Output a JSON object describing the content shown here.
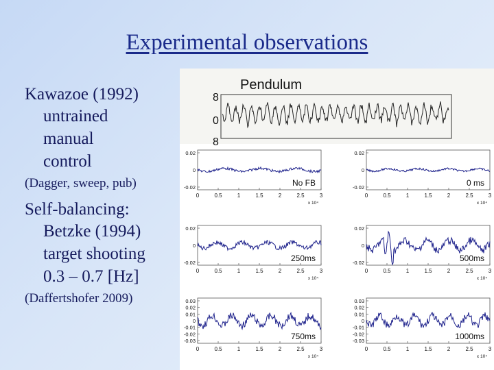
{
  "slide": {
    "title": "Experimental observations"
  },
  "bullets": {
    "kawazoe": {
      "main": "Kawazoe (1992)",
      "lines": [
        "untrained",
        "manual",
        "control"
      ],
      "note": "(Dagger, sweep, pub)"
    },
    "selfbalancing": {
      "main": "Self-balancing:",
      "lines": [
        "Betzke (1994)",
        "target shooting",
        "0.3 – 0.7 [Hz]"
      ],
      "note": "(Daffertshofer 2009)"
    }
  },
  "figure": {
    "pendulum_title": "Pendulum",
    "pendulum_axis_labels": [
      "8",
      "0",
      "8"
    ],
    "x_ticks": [
      "0",
      "0.5",
      "1",
      "1.5",
      "2",
      "2.5",
      "3"
    ],
    "x_exponent": "x 10⁴",
    "panels": [
      {
        "label": "No FB",
        "y_ticks": [
          "0.02",
          "0",
          "-0.02"
        ]
      },
      {
        "label": "0 ms",
        "y_ticks": [
          "0.02",
          "0",
          "-0.02"
        ]
      },
      {
        "label": "250ms",
        "y_ticks": [
          "0.02",
          "0",
          "-0.02"
        ]
      },
      {
        "label": "500ms",
        "y_ticks": [
          "0.02",
          "0",
          "-0.02"
        ]
      },
      {
        "label": "750ms",
        "y_ticks": [
          "0.03",
          "0.02",
          "0.01",
          "0",
          "-0.01",
          "-0.02",
          "-0.03"
        ]
      },
      {
        "label": "1000ms",
        "y_ticks": [
          "0.03",
          "0.02",
          "0.01",
          "0",
          "-0.01",
          "-0.02",
          "-0.03"
        ]
      }
    ],
    "trace_color": "#1b1f8a"
  }
}
